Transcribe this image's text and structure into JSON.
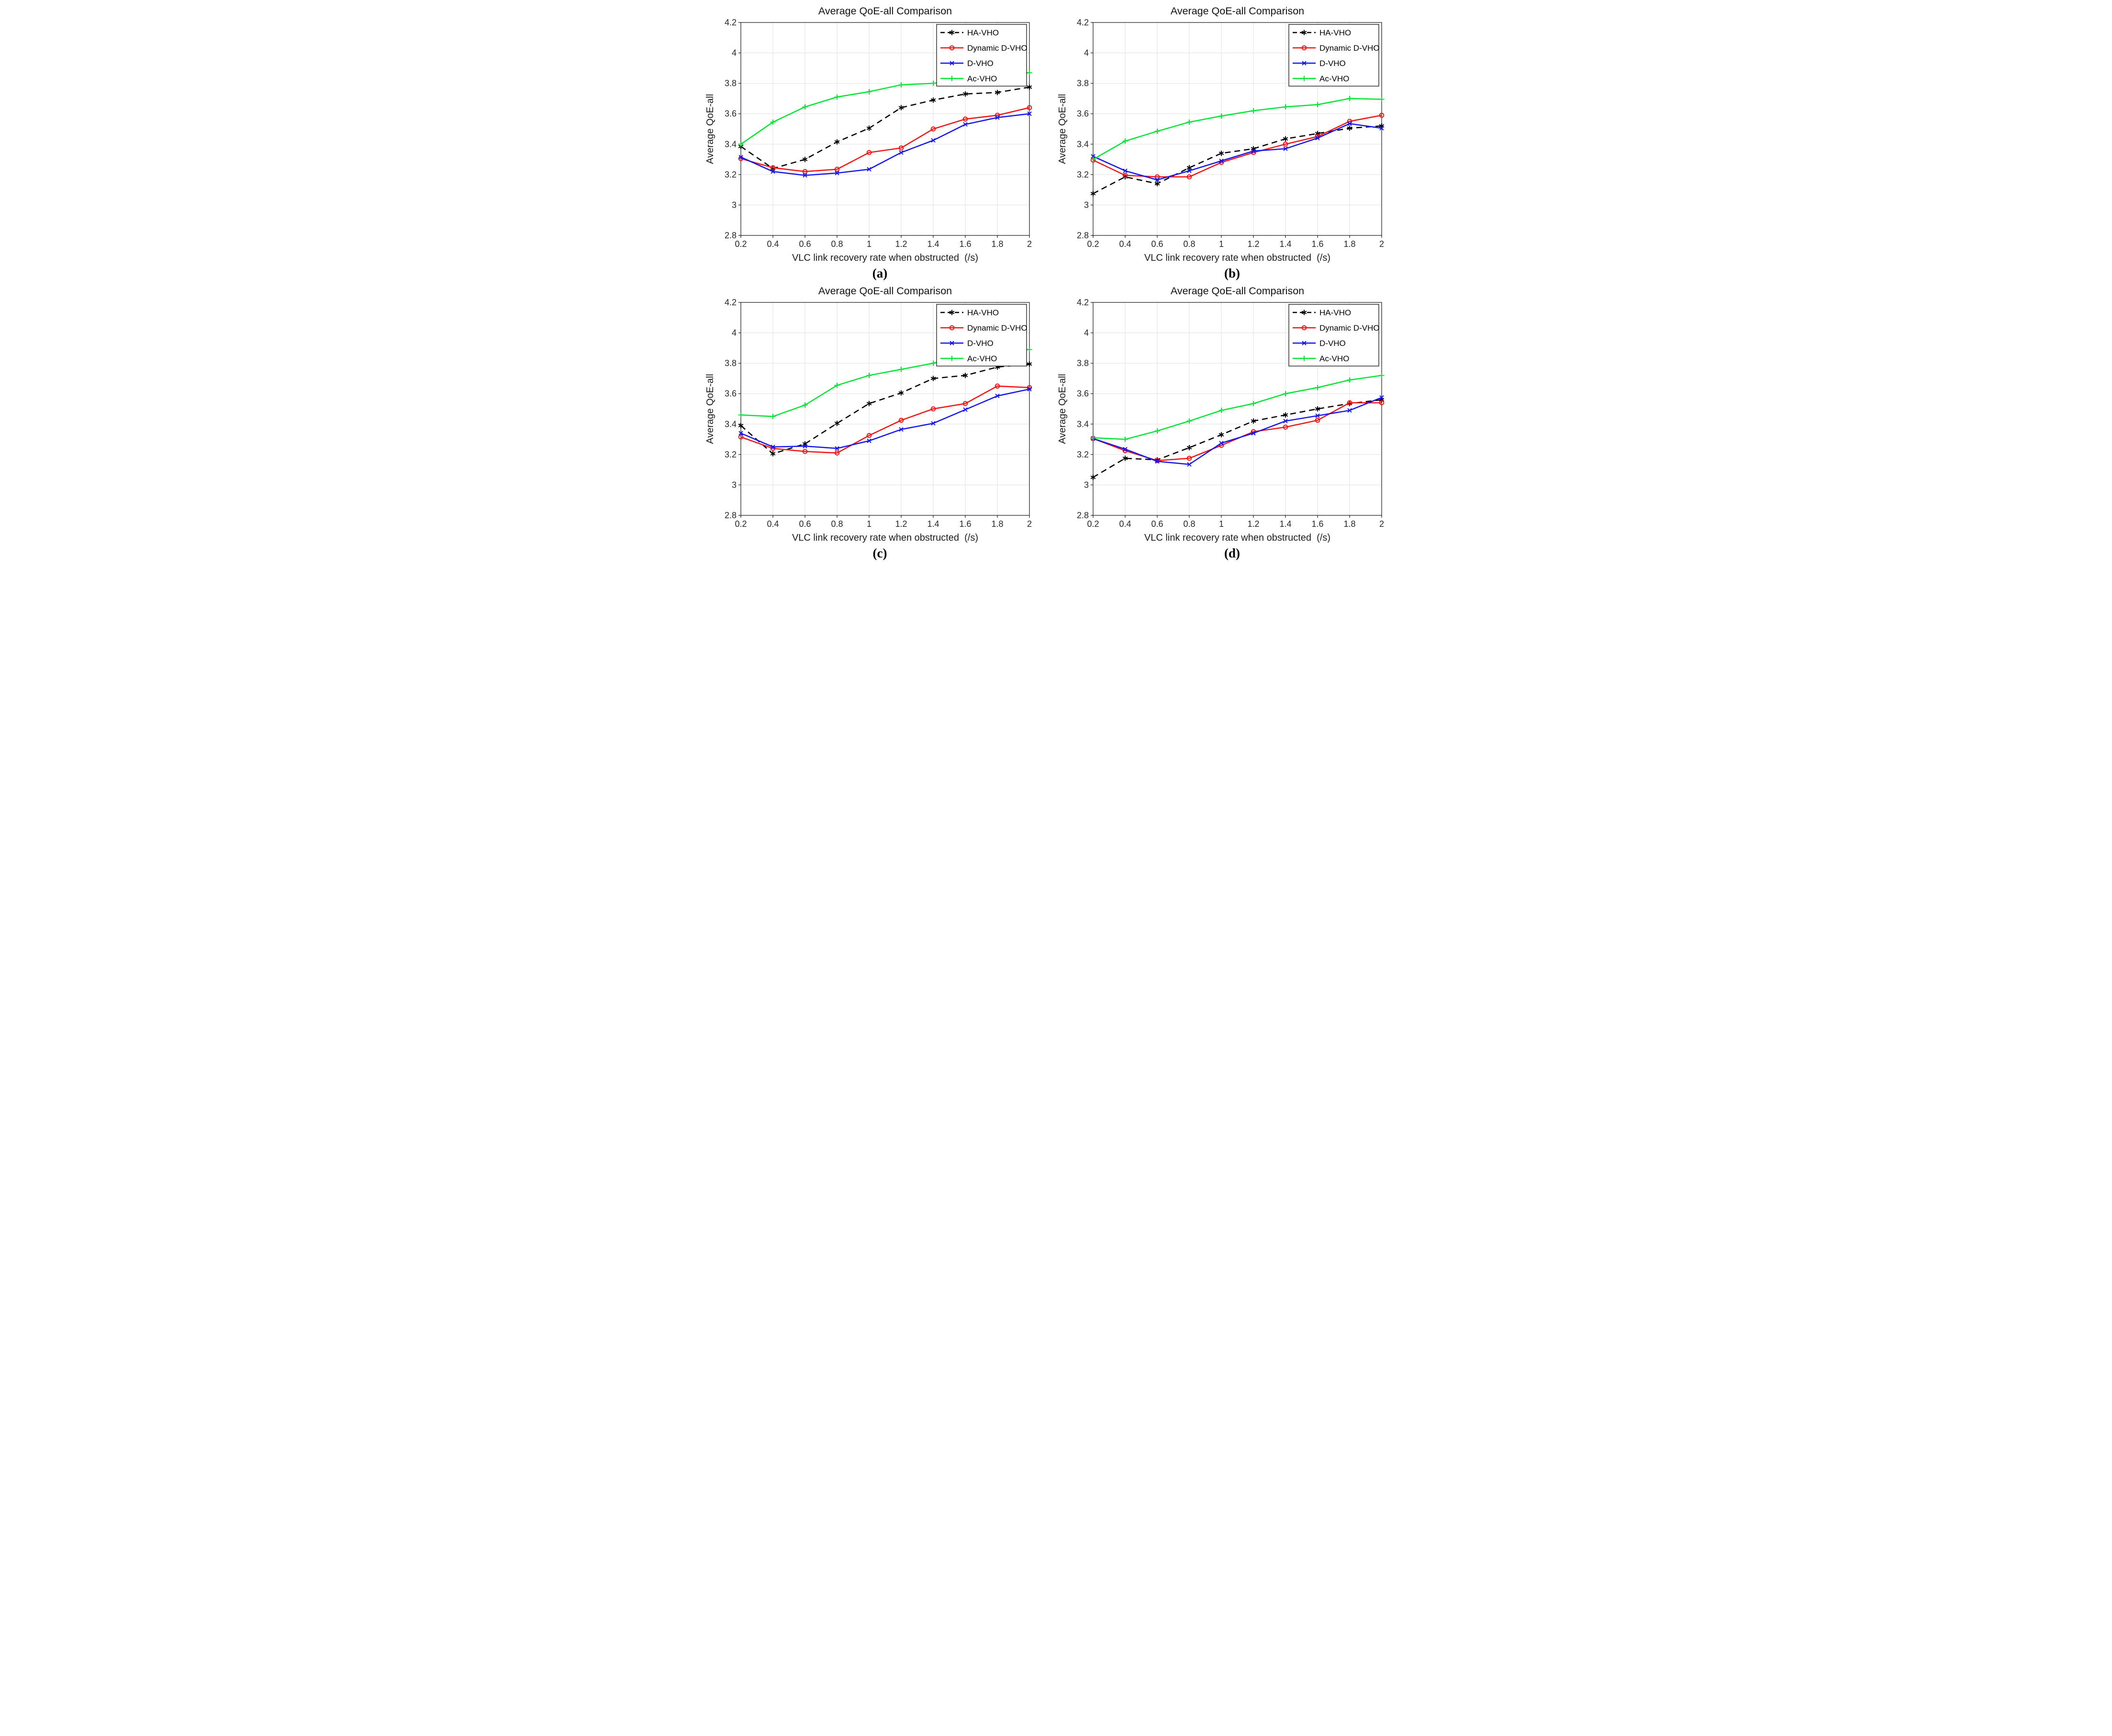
{
  "figure": {
    "background": "#ffffff",
    "grid_color": "#e0e0e0",
    "axis_color": "#262626",
    "accent_colors": {
      "ha_vho": "#000000",
      "dynamic_d_vho": "#f01414",
      "d_vho": "#1414f0",
      "ac_vho": "#00e632"
    }
  },
  "chart_data": [
    {
      "id": "a",
      "type": "line",
      "title": "Average QoE-all Comparison",
      "xlabel": "VLC link recovery rate when obstructed  (/s)",
      "ylabel": "Average QoE-all",
      "caption": "(a)",
      "grid": true,
      "legend_position": "top-right",
      "xlim": [
        0.2,
        2
      ],
      "ylim": [
        2.8,
        4.2
      ],
      "x": [
        0.2,
        0.4,
        0.6,
        0.8,
        1,
        1.2,
        1.4,
        1.6,
        1.8,
        2
      ],
      "xtick_labels": [
        "0.2",
        "0.4",
        "0.6",
        "0.8",
        "1",
        "1.2",
        "1.4",
        "1.6",
        "1.8",
        "2"
      ],
      "yticks": [
        2.8,
        3,
        3.2,
        3.4,
        3.6,
        3.8,
        4,
        4.2
      ],
      "ytick_labels": [
        "2.8",
        "3",
        "3.2",
        "3.4",
        "3.6",
        "3.8",
        "4",
        "4.2"
      ],
      "series": [
        {
          "name": "HA-VHO",
          "color": "#000000",
          "line": "dashed",
          "marker": "asterisk",
          "values": [
            3.385,
            3.24,
            3.3,
            3.415,
            3.505,
            3.64,
            3.69,
            3.73,
            3.74,
            3.775
          ]
        },
        {
          "name": "Dynamic D-VHO",
          "color": "#f01414",
          "line": "solid",
          "marker": "circle",
          "values": [
            3.305,
            3.245,
            3.22,
            3.235,
            3.345,
            3.375,
            3.5,
            3.565,
            3.59,
            3.64
          ]
        },
        {
          "name": "D-VHO",
          "color": "#1414f0",
          "line": "solid",
          "marker": "x",
          "values": [
            3.315,
            3.22,
            3.195,
            3.21,
            3.235,
            3.345,
            3.425,
            3.53,
            3.575,
            3.6
          ]
        },
        {
          "name": "Ac-VHO",
          "color": "#00e632",
          "line": "solid",
          "marker": "plus",
          "values": [
            3.4,
            3.545,
            3.645,
            3.71,
            3.745,
            3.79,
            3.8,
            3.825,
            3.845,
            3.87
          ]
        }
      ]
    },
    {
      "id": "b",
      "type": "line",
      "title": "Average QoE-all Comparison",
      "xlabel": "VLC link recovery rate when obstructed  (/s)",
      "ylabel": "Average QoE-all",
      "caption": "(b)",
      "grid": true,
      "legend_position": "top-right",
      "xlim": [
        0.2,
        2
      ],
      "ylim": [
        2.8,
        4.2
      ],
      "x": [
        0.2,
        0.4,
        0.6,
        0.8,
        1,
        1.2,
        1.4,
        1.6,
        1.8,
        2
      ],
      "xtick_labels": [
        "0.2",
        "0.4",
        "0.6",
        "0.8",
        "1",
        "1.2",
        "1.4",
        "1.6",
        "1.8",
        "2"
      ],
      "yticks": [
        2.8,
        3,
        3.2,
        3.4,
        3.6,
        3.8,
        4,
        4.2
      ],
      "ytick_labels": [
        "2.8",
        "3",
        "3.2",
        "3.4",
        "3.6",
        "3.8",
        "4",
        "4.2"
      ],
      "series": [
        {
          "name": "HA-VHO",
          "color": "#000000",
          "line": "dashed",
          "marker": "asterisk",
          "values": [
            3.075,
            3.185,
            3.14,
            3.245,
            3.34,
            3.37,
            3.435,
            3.47,
            3.505,
            3.52
          ]
        },
        {
          "name": "Dynamic D-VHO",
          "color": "#f01414",
          "line": "solid",
          "marker": "circle",
          "values": [
            3.295,
            3.195,
            3.185,
            3.185,
            3.28,
            3.345,
            3.4,
            3.45,
            3.55,
            3.59
          ]
        },
        {
          "name": "D-VHO",
          "color": "#1414f0",
          "line": "solid",
          "marker": "x",
          "values": [
            3.32,
            3.225,
            3.165,
            3.225,
            3.29,
            3.355,
            3.37,
            3.44,
            3.535,
            3.505
          ]
        },
        {
          "name": "Ac-VHO",
          "color": "#00e632",
          "line": "solid",
          "marker": "plus",
          "values": [
            3.3,
            3.42,
            3.485,
            3.545,
            3.585,
            3.62,
            3.645,
            3.66,
            3.7,
            3.695
          ]
        }
      ]
    },
    {
      "id": "c",
      "type": "line",
      "title": "Average QoE-all Comparison",
      "xlabel": "VLC link recovery rate when obstructed  (/s)",
      "ylabel": "Average QoE-all",
      "caption": "(c)",
      "grid": true,
      "legend_position": "top-right",
      "xlim": [
        0.2,
        2
      ],
      "ylim": [
        2.8,
        4.2
      ],
      "x": [
        0.2,
        0.4,
        0.6,
        0.8,
        1,
        1.2,
        1.4,
        1.6,
        1.8,
        2
      ],
      "xtick_labels": [
        "0.2",
        "0.4",
        "0.6",
        "0.8",
        "1",
        "1.2",
        "1.4",
        "1.6",
        "1.8",
        "2"
      ],
      "yticks": [
        2.8,
        3,
        3.2,
        3.4,
        3.6,
        3.8,
        4,
        4.2
      ],
      "ytick_labels": [
        "2.8",
        "3",
        "3.2",
        "3.4",
        "3.6",
        "3.8",
        "4",
        "4.2"
      ],
      "series": [
        {
          "name": "HA-VHO",
          "color": "#000000",
          "line": "dashed",
          "marker": "asterisk",
          "values": [
            3.39,
            3.205,
            3.27,
            3.405,
            3.535,
            3.605,
            3.7,
            3.72,
            3.775,
            3.795
          ]
        },
        {
          "name": "Dynamic D-VHO",
          "color": "#f01414",
          "line": "solid",
          "marker": "circle",
          "values": [
            3.315,
            3.24,
            3.22,
            3.21,
            3.325,
            3.425,
            3.5,
            3.535,
            3.65,
            3.64
          ]
        },
        {
          "name": "D-VHO",
          "color": "#1414f0",
          "line": "solid",
          "marker": "x",
          "values": [
            3.34,
            3.25,
            3.255,
            3.24,
            3.29,
            3.365,
            3.405,
            3.495,
            3.585,
            3.63
          ]
        },
        {
          "name": "Ac-VHO",
          "color": "#00e632",
          "line": "solid",
          "marker": "plus",
          "values": [
            3.46,
            3.45,
            3.525,
            3.655,
            3.72,
            3.76,
            3.8,
            3.855,
            3.885,
            3.89
          ]
        }
      ]
    },
    {
      "id": "d",
      "type": "line",
      "title": "Average QoE-all Comparison",
      "xlabel": "VLC link recovery rate when obstructed  (/s)",
      "ylabel": "Average QoE-all",
      "caption": "(d)",
      "grid": true,
      "legend_position": "top-right",
      "xlim": [
        0.2,
        2
      ],
      "ylim": [
        2.8,
        4.2
      ],
      "x": [
        0.2,
        0.4,
        0.6,
        0.8,
        1,
        1.2,
        1.4,
        1.6,
        1.8,
        2
      ],
      "xtick_labels": [
        "0.2",
        "0.4",
        "0.6",
        "0.8",
        "1",
        "1.2",
        "1.4",
        "1.6",
        "1.8",
        "2"
      ],
      "yticks": [
        2.8,
        3,
        3.2,
        3.4,
        3.6,
        3.8,
        4,
        4.2
      ],
      "ytick_labels": [
        "2.8",
        "3",
        "3.2",
        "3.4",
        "3.6",
        "3.8",
        "4",
        "4.2"
      ],
      "series": [
        {
          "name": "HA-VHO",
          "color": "#000000",
          "line": "dashed",
          "marker": "asterisk",
          "values": [
            3.05,
            3.175,
            3.165,
            3.245,
            3.33,
            3.42,
            3.46,
            3.5,
            3.535,
            3.56
          ]
        },
        {
          "name": "Dynamic D-VHO",
          "color": "#f01414",
          "line": "solid",
          "marker": "circle",
          "values": [
            3.305,
            3.225,
            3.16,
            3.175,
            3.26,
            3.35,
            3.38,
            3.425,
            3.54,
            3.54
          ]
        },
        {
          "name": "D-VHO",
          "color": "#1414f0",
          "line": "solid",
          "marker": "x",
          "values": [
            3.305,
            3.235,
            3.155,
            3.135,
            3.275,
            3.34,
            3.42,
            3.455,
            3.49,
            3.575
          ]
        },
        {
          "name": "Ac-VHO",
          "color": "#00e632",
          "line": "solid",
          "marker": "plus",
          "values": [
            3.31,
            3.3,
            3.355,
            3.42,
            3.49,
            3.535,
            3.6,
            3.64,
            3.69,
            3.72
          ]
        }
      ]
    }
  ]
}
